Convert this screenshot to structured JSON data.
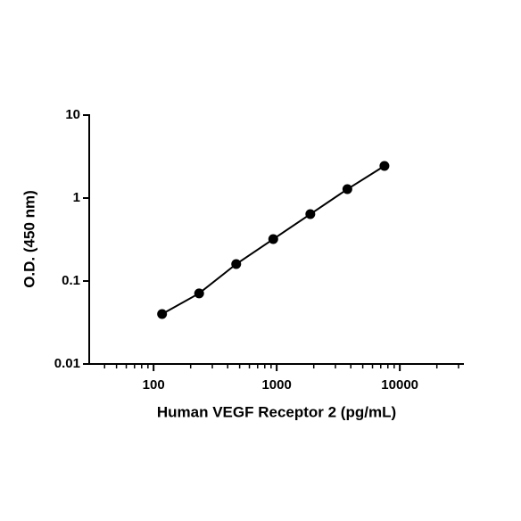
{
  "chart_data": {
    "type": "line",
    "x_label": "Human VEGF Receptor 2 (pg/mL)",
    "y_label": "O.D. (450 nm)",
    "x": [
      117.2,
      234.4,
      468.8,
      937.5,
      1875,
      3750,
      7500
    ],
    "series": [
      {
        "color": "#000000",
        "values": [
          0.04,
          0.071,
          0.16,
          0.32,
          0.64,
          1.28,
          2.44
        ]
      }
    ],
    "xlog": true,
    "ylog": true,
    "xlim": [
      30,
      30000
    ],
    "ylim": [
      0.01,
      10
    ],
    "xticks": [
      100,
      1000,
      10000
    ],
    "xminorticks": [
      40,
      50,
      60,
      70,
      80,
      90,
      200,
      300,
      400,
      500,
      600,
      700,
      800,
      900,
      2000,
      3000,
      4000,
      5000,
      6000,
      7000,
      8000,
      9000,
      20000,
      30000
    ],
    "yticks": [
      0.01,
      0.1,
      1,
      10
    ],
    "markers": true
  }
}
